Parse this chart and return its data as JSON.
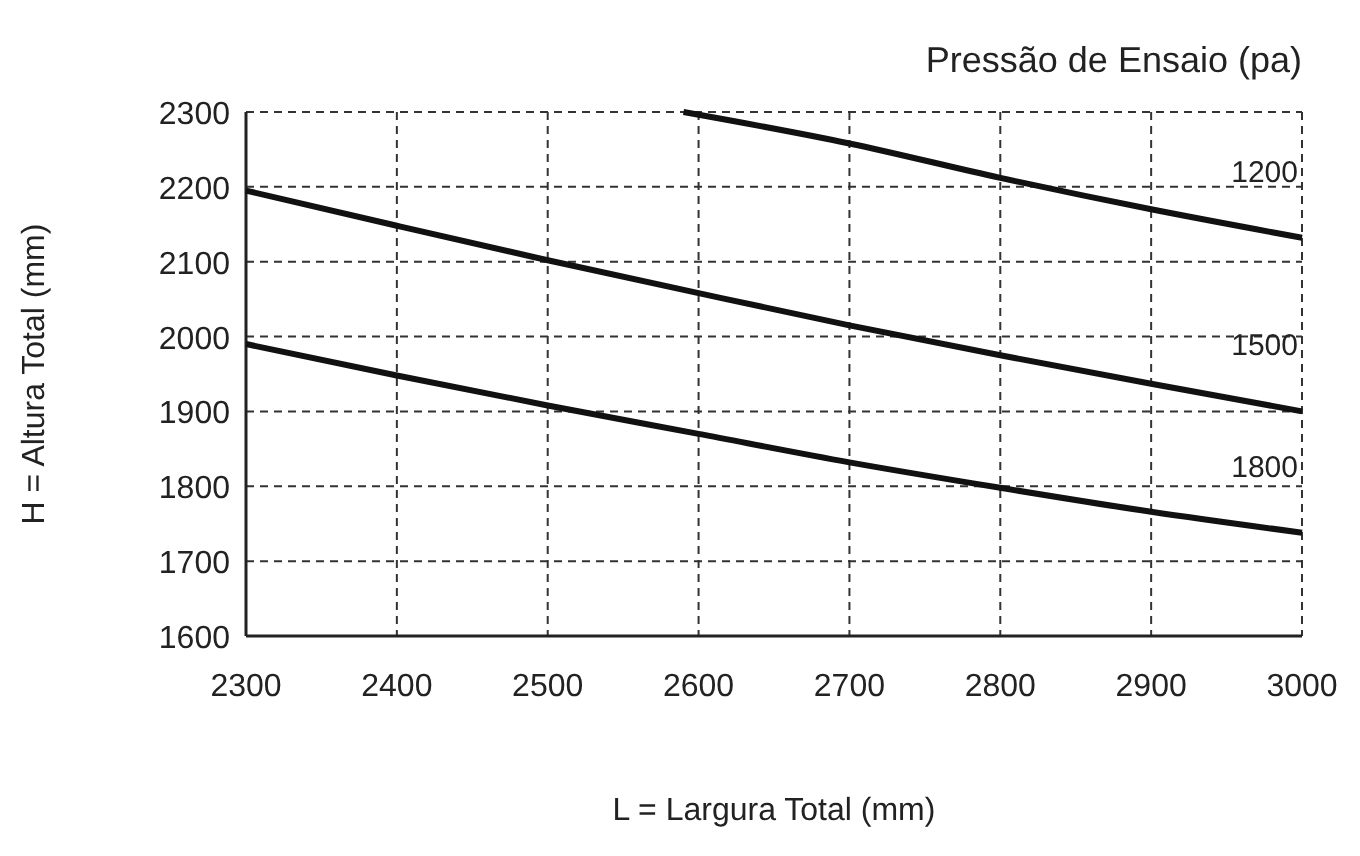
{
  "chart_data": {
    "type": "line",
    "xlabel": "L = Largura Total (mm)",
    "ylabel": "H = Altura Total (mm)",
    "legend_title": "Pressão de Ensaio (pa)",
    "xlim": [
      2300,
      3000
    ],
    "xticks": [
      2300,
      2400,
      2500,
      2600,
      2700,
      2800,
      2900,
      3000
    ],
    "ylim": [
      1600,
      2300
    ],
    "yticks": [
      1600,
      1700,
      1800,
      1900,
      2000,
      2100,
      2200,
      2300
    ],
    "grid": true,
    "line_style": "solid",
    "marker": "none",
    "series": [
      {
        "name": "1200",
        "color": "#111111",
        "x": [
          2590,
          2700,
          2800,
          2900,
          3000
        ],
        "values": [
          2300,
          2258,
          2212,
          2170,
          2132
        ]
      },
      {
        "name": "1500",
        "color": "#111111",
        "x": [
          2300,
          2400,
          2500,
          2600,
          2700,
          2800,
          2900,
          3000
        ],
        "values": [
          2195,
          2148,
          2102,
          2058,
          2015,
          1975,
          1937,
          1900
        ]
      },
      {
        "name": "1800",
        "color": "#111111",
        "x": [
          2300,
          2400,
          2500,
          2600,
          2700,
          2800,
          2900,
          3000
        ],
        "values": [
          1990,
          1948,
          1908,
          1870,
          1832,
          1798,
          1766,
          1738
        ]
      }
    ]
  }
}
